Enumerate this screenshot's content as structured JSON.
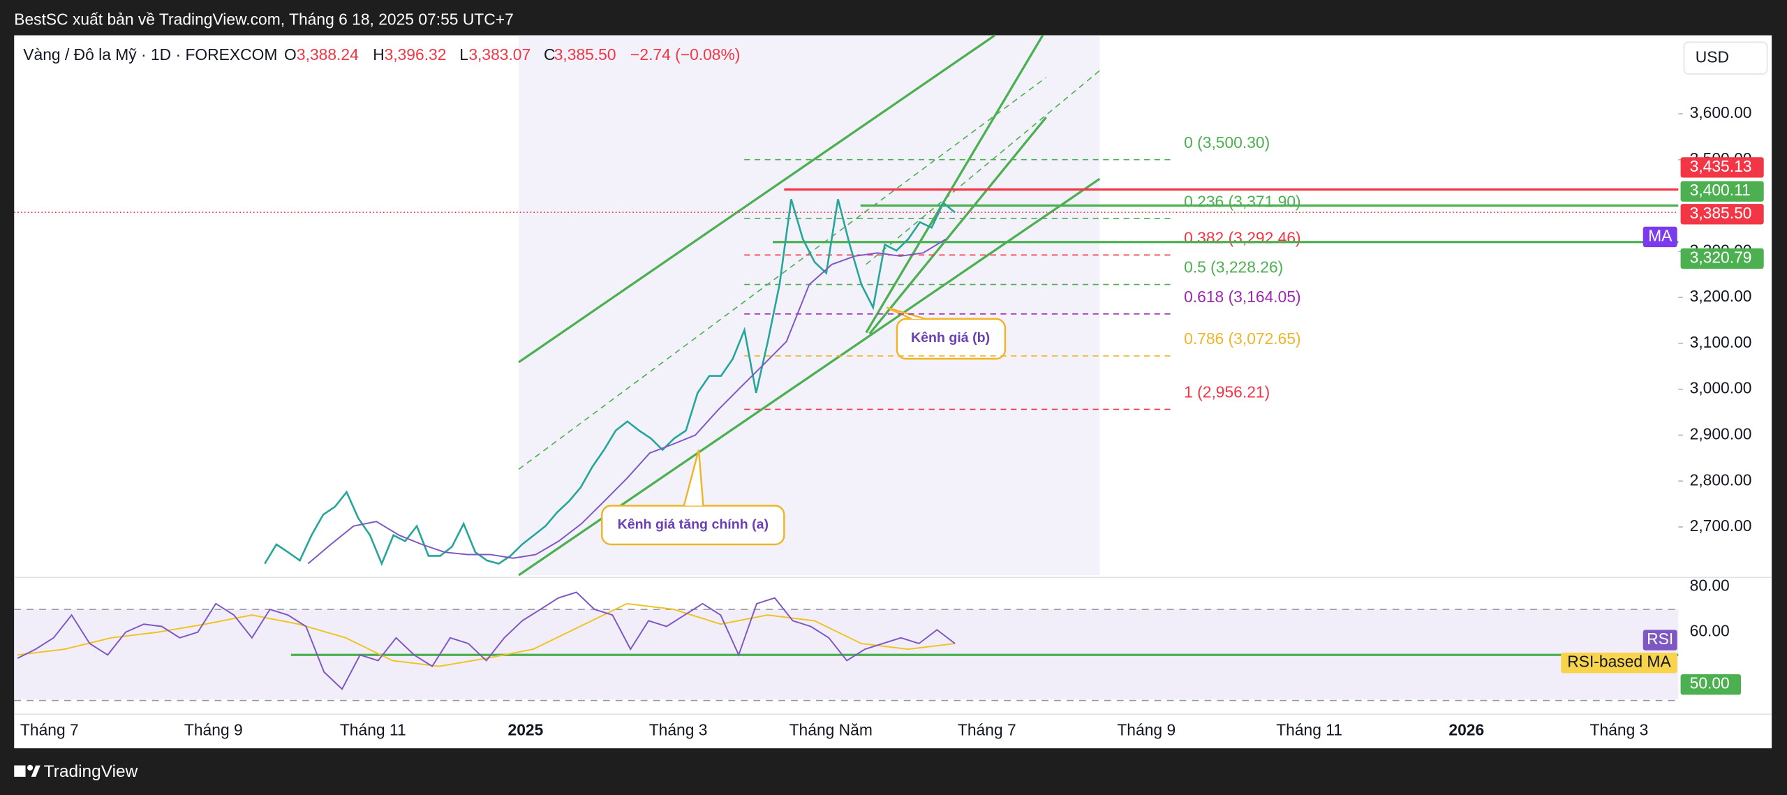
{
  "header": {
    "text": "BestSC xuất bản về TradingView.com, Tháng 6 18, 2025 07:55 UTC+7"
  },
  "footer": {
    "brand": "TradingView"
  },
  "chart_data": {
    "type": "line",
    "legend": {
      "symbol": "Vàng / Đô la Mỹ · 1D · FOREXCOM",
      "o": "O",
      "open": "3,388.24",
      "h": "H",
      "high": "3,396.32",
      "l": "L",
      "low": "3,383.07",
      "c": "C",
      "close": "3,385.50",
      "change": "−2.74 (−0.08%)"
    },
    "currency": "USD",
    "ylim": [
      2595,
      3771
    ],
    "yticks": [
      {
        "value": 3600,
        "label": "3,600.00"
      },
      {
        "value": 3500,
        "label": "3,500.00"
      },
      {
        "value": 3300,
        "label": "3,300.00"
      },
      {
        "value": 3200,
        "label": "3,200.00"
      },
      {
        "value": 3100,
        "label": "3,100.00"
      },
      {
        "value": 3000,
        "label": "3,000.00"
      },
      {
        "value": 2900,
        "label": "2,900.00"
      },
      {
        "value": 2800,
        "label": "2,800.00"
      },
      {
        "value": 2700,
        "label": "2,700.00"
      }
    ],
    "price": {
      "color": "#26a69a",
      "values": [
        2620,
        2662,
        2645,
        2627,
        2682,
        2727,
        2744,
        2776,
        2719,
        2682,
        2620,
        2682,
        2669,
        2702,
        2637,
        2637,
        2657,
        2707,
        2645,
        2627,
        2620,
        2637,
        2662,
        2682,
        2702,
        2732,
        2756,
        2786,
        2831,
        2868,
        2910,
        2930,
        2910,
        2893,
        2868,
        2893,
        2910,
        2992,
        3029,
        3029,
        3066,
        3129,
        2992,
        3104,
        3228,
        3414,
        3327,
        3277,
        3253,
        3414,
        3315,
        3228,
        3178,
        3315,
        3302,
        3327,
        3364,
        3352,
        3406,
        3385
      ]
    },
    "ma": {
      "name": "MA",
      "color": "#7e57c2",
      "values": [
        2620,
        2662,
        2702,
        2712,
        2682,
        2662,
        2645,
        2640,
        2640,
        2632,
        2640,
        2669,
        2707,
        2756,
        2806,
        2861,
        2880,
        2900,
        2955,
        3005,
        3054,
        3104,
        3228,
        3272,
        3290,
        3297,
        3290,
        3297,
        3327
      ]
    },
    "price_labels": [
      {
        "value": 3435.13,
        "label": "3,435.13",
        "color": "#f23645"
      },
      {
        "value": 3400.11,
        "label": "3,400.11",
        "color": "#4caf50"
      },
      {
        "value": 3385.5,
        "label": "3,385.50",
        "color": "#f23645"
      },
      {
        "value": 3320.79,
        "label": "3,320.79",
        "color": "#4caf50"
      }
    ],
    "fib_levels": [
      {
        "label": "0 (3,500.30)",
        "value": 3500.3,
        "color": "#4caf50"
      },
      {
        "label": "0.236 (3,371.90)",
        "value": 3371.9,
        "color": "#4caf50"
      },
      {
        "label": "0.382 (3,292.46)",
        "value": 3292.46,
        "color": "#f23645"
      },
      {
        "label": "0.5 (3,228.26)",
        "value": 3228.26,
        "color": "#4caf50"
      },
      {
        "label": "0.618 (3,164.05)",
        "value": 3164.05,
        "color": "#9c27b0"
      },
      {
        "label": "0.786 (3,072.65)",
        "value": 3072.65,
        "color": "#f0b429"
      },
      {
        "label": "1 (2,956.21)",
        "value": 2956.21,
        "color": "#f23645"
      }
    ],
    "annotations": [
      "Kênh giá (b)",
      "Kênh giá tăng chính (a)"
    ],
    "time_labels": [
      "Tháng 7",
      "Tháng 9",
      "Tháng 11",
      "2025",
      "Tháng 3",
      "Tháng Năm",
      "Tháng 7",
      "Tháng 9",
      "Tháng 11",
      "2026",
      "Tháng 3"
    ],
    "rsi": {
      "name": "RSI",
      "color": "#7e57c2",
      "values": [
        48.5,
        52.5,
        57.5,
        67.5,
        55,
        50,
        60,
        63.5,
        62.5,
        57.5,
        60,
        72.5,
        67.5,
        57.5,
        70,
        67.5,
        62.5,
        42.5,
        35,
        50,
        47.5,
        57.5,
        50,
        45,
        57.5,
        55,
        47.5,
        57.5,
        65,
        70,
        75,
        77.5,
        70,
        67.5,
        52.5,
        65,
        62.5,
        67.5,
        72.5,
        67.5,
        50,
        72.5,
        75,
        65,
        62.5,
        57.5,
        47.5,
        52.5,
        55,
        57.5,
        55,
        61,
        55
      ],
      "ma": {
        "name": "RSI-based MA",
        "color": "#f0c420",
        "values": [
          50,
          52.5,
          57.5,
          60,
          63.5,
          67.5,
          63.5,
          57.5,
          47.5,
          45,
          48.5,
          52.5,
          62.5,
          72.5,
          70,
          63.5,
          67.5,
          65,
          55,
          52.5,
          55
        ]
      },
      "ylim": [
        25,
        85
      ],
      "yticks": [
        {
          "value": 80,
          "label": "80.00"
        },
        {
          "value": 60,
          "label": "60.00"
        }
      ],
      "bands": [
        70,
        30
      ],
      "level": {
        "value": 50,
        "label": "50.00"
      }
    }
  }
}
